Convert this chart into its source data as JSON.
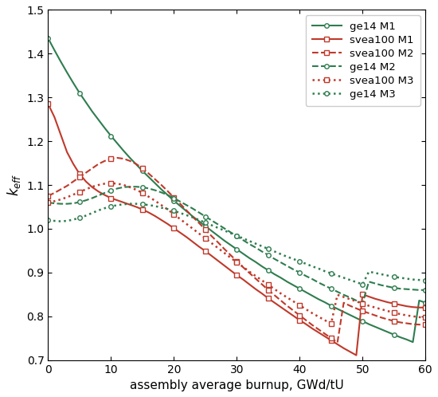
{
  "xlabel": "assembly average burnup, GWd/tU",
  "xlim": [
    0,
    60
  ],
  "ylim": [
    0.7,
    1.5
  ],
  "xticks": [
    0,
    10,
    20,
    30,
    40,
    50,
    60
  ],
  "yticks": [
    0.7,
    0.8,
    0.9,
    1.0,
    1.1,
    1.2,
    1.3,
    1.4,
    1.5
  ],
  "ge14_M1_x": [
    0,
    1,
    2,
    3,
    4,
    5,
    6,
    7,
    8,
    9,
    10,
    11,
    12,
    13,
    14,
    15,
    16,
    17,
    18,
    19,
    20,
    21,
    22,
    23,
    24,
    25,
    26,
    27,
    28,
    29,
    30,
    31,
    32,
    33,
    34,
    35,
    36,
    37,
    38,
    39,
    40,
    41,
    42,
    43,
    44,
    45,
    46,
    47,
    48,
    49,
    50,
    51,
    52,
    53,
    54,
    55,
    56,
    57,
    58,
    59,
    60
  ],
  "ge14_M1_y": [
    1.435,
    1.408,
    1.382,
    1.357,
    1.333,
    1.31,
    1.289,
    1.268,
    1.249,
    1.23,
    1.212,
    1.195,
    1.178,
    1.162,
    1.147,
    1.132,
    1.118,
    1.104,
    1.09,
    1.077,
    1.064,
    1.052,
    1.04,
    1.028,
    1.017,
    1.006,
    0.995,
    0.984,
    0.973,
    0.963,
    0.953,
    0.943,
    0.933,
    0.924,
    0.914,
    0.905,
    0.896,
    0.888,
    0.879,
    0.871,
    0.863,
    0.855,
    0.847,
    0.839,
    0.832,
    0.824,
    0.817,
    0.81,
    0.803,
    0.796,
    0.789,
    0.782,
    0.776,
    0.77,
    0.764,
    0.758,
    0.752,
    0.747,
    0.741,
    0.836,
    0.831
  ],
  "svea100_M1_x": [
    0,
    1,
    2,
    3,
    4,
    5,
    6,
    7,
    8,
    9,
    10,
    11,
    12,
    13,
    14,
    15,
    16,
    17,
    18,
    19,
    20,
    21,
    22,
    23,
    24,
    25,
    26,
    27,
    28,
    29,
    30,
    31,
    32,
    33,
    34,
    35,
    36,
    37,
    38,
    39,
    40,
    41,
    42,
    43,
    44,
    45,
    46,
    47,
    48,
    49,
    50,
    51,
    52,
    53,
    54,
    55,
    56,
    57,
    58,
    59,
    60
  ],
  "svea100_M1_y": [
    1.285,
    1.255,
    1.215,
    1.175,
    1.148,
    1.125,
    1.108,
    1.095,
    1.085,
    1.077,
    1.07,
    1.065,
    1.06,
    1.055,
    1.05,
    1.044,
    1.037,
    1.029,
    1.02,
    1.011,
    1.001,
    0.991,
    0.981,
    0.97,
    0.959,
    0.949,
    0.938,
    0.927,
    0.916,
    0.905,
    0.894,
    0.884,
    0.873,
    0.862,
    0.852,
    0.841,
    0.831,
    0.821,
    0.811,
    0.801,
    0.791,
    0.782,
    0.772,
    0.763,
    0.754,
    0.745,
    0.736,
    0.727,
    0.719,
    0.711,
    0.85,
    0.845,
    0.84,
    0.836,
    0.832,
    0.829,
    0.826,
    0.823,
    0.821,
    0.82,
    0.82
  ],
  "svea100_M2_x": [
    0,
    1,
    2,
    3,
    4,
    5,
    6,
    7,
    8,
    9,
    10,
    11,
    12,
    13,
    14,
    15,
    16,
    17,
    18,
    19,
    20,
    21,
    22,
    23,
    24,
    25,
    26,
    27,
    28,
    29,
    30,
    31,
    32,
    33,
    34,
    35,
    36,
    37,
    38,
    39,
    40,
    41,
    42,
    43,
    44,
    45,
    46,
    47,
    48,
    49,
    50,
    51,
    52,
    53,
    54,
    55,
    56,
    57,
    58,
    59,
    60
  ],
  "svea100_M2_y": [
    1.075,
    1.082,
    1.09,
    1.098,
    1.108,
    1.118,
    1.128,
    1.138,
    1.148,
    1.155,
    1.16,
    1.162,
    1.16,
    1.155,
    1.148,
    1.138,
    1.126,
    1.113,
    1.1,
    1.086,
    1.071,
    1.057,
    1.042,
    1.027,
    1.013,
    0.998,
    0.983,
    0.969,
    0.954,
    0.94,
    0.926,
    0.912,
    0.899,
    0.886,
    0.873,
    0.86,
    0.848,
    0.836,
    0.824,
    0.813,
    0.802,
    0.791,
    0.78,
    0.77,
    0.76,
    0.75,
    0.74,
    0.831,
    0.824,
    0.818,
    0.812,
    0.807,
    0.802,
    0.797,
    0.793,
    0.789,
    0.786,
    0.784,
    0.782,
    0.781,
    0.781
  ],
  "ge14_M2_x": [
    0,
    1,
    2,
    3,
    4,
    5,
    6,
    7,
    8,
    9,
    10,
    11,
    12,
    13,
    14,
    15,
    16,
    17,
    18,
    19,
    20,
    21,
    22,
    23,
    24,
    25,
    26,
    27,
    28,
    29,
    30,
    31,
    32,
    33,
    34,
    35,
    36,
    37,
    38,
    39,
    40,
    41,
    42,
    43,
    44,
    45,
    46,
    47,
    48,
    49,
    50,
    51,
    52,
    53,
    54,
    55,
    56,
    57,
    58,
    59,
    60
  ],
  "ge14_M2_y": [
    1.06,
    1.058,
    1.057,
    1.057,
    1.058,
    1.061,
    1.065,
    1.07,
    1.076,
    1.082,
    1.087,
    1.092,
    1.095,
    1.096,
    1.096,
    1.095,
    1.092,
    1.088,
    1.083,
    1.077,
    1.07,
    1.062,
    1.054,
    1.046,
    1.037,
    1.028,
    1.019,
    1.01,
    1.001,
    0.992,
    0.983,
    0.974,
    0.965,
    0.957,
    0.948,
    0.94,
    0.931,
    0.923,
    0.915,
    0.907,
    0.9,
    0.892,
    0.885,
    0.877,
    0.87,
    0.863,
    0.856,
    0.849,
    0.843,
    0.836,
    0.83,
    0.879,
    0.875,
    0.871,
    0.868,
    0.865,
    0.863,
    0.862,
    0.861,
    0.86,
    0.86
  ],
  "svea100_M3_x": [
    0,
    1,
    2,
    3,
    4,
    5,
    6,
    7,
    8,
    9,
    10,
    11,
    12,
    13,
    14,
    15,
    16,
    17,
    18,
    19,
    20,
    21,
    22,
    23,
    24,
    25,
    26,
    27,
    28,
    29,
    30,
    31,
    32,
    33,
    34,
    35,
    36,
    37,
    38,
    39,
    40,
    41,
    42,
    43,
    44,
    45,
    46,
    47,
    48,
    49,
    50,
    51,
    52,
    53,
    54,
    55,
    56,
    57,
    58,
    59,
    60
  ],
  "svea100_M3_y": [
    1.06,
    1.063,
    1.067,
    1.072,
    1.078,
    1.084,
    1.09,
    1.096,
    1.1,
    1.103,
    1.104,
    1.103,
    1.1,
    1.095,
    1.089,
    1.082,
    1.073,
    1.064,
    1.054,
    1.044,
    1.033,
    1.022,
    1.011,
    1.0,
    0.989,
    0.978,
    0.967,
    0.956,
    0.945,
    0.934,
    0.923,
    0.913,
    0.902,
    0.892,
    0.882,
    0.872,
    0.862,
    0.852,
    0.843,
    0.834,
    0.825,
    0.816,
    0.807,
    0.799,
    0.791,
    0.783,
    0.849,
    0.844,
    0.839,
    0.834,
    0.829,
    0.824,
    0.82,
    0.816,
    0.812,
    0.808,
    0.805,
    0.802,
    0.8,
    0.798,
    0.797
  ],
  "ge14_M3_x": [
    0,
    1,
    2,
    3,
    4,
    5,
    6,
    7,
    8,
    9,
    10,
    11,
    12,
    13,
    14,
    15,
    16,
    17,
    18,
    19,
    20,
    21,
    22,
    23,
    24,
    25,
    26,
    27,
    28,
    29,
    30,
    31,
    32,
    33,
    34,
    35,
    36,
    37,
    38,
    39,
    40,
    41,
    42,
    43,
    44,
    45,
    46,
    47,
    48,
    49,
    50,
    51,
    52,
    53,
    54,
    55,
    56,
    57,
    58,
    59,
    60
  ],
  "ge14_M3_y": [
    1.02,
    1.018,
    1.017,
    1.018,
    1.021,
    1.025,
    1.03,
    1.036,
    1.042,
    1.047,
    1.051,
    1.054,
    1.056,
    1.057,
    1.057,
    1.056,
    1.054,
    1.052,
    1.048,
    1.045,
    1.041,
    1.036,
    1.031,
    1.026,
    1.02,
    1.014,
    1.008,
    1.002,
    0.996,
    0.99,
    0.984,
    0.978,
    0.972,
    0.966,
    0.96,
    0.954,
    0.948,
    0.942,
    0.936,
    0.931,
    0.925,
    0.92,
    0.914,
    0.909,
    0.903,
    0.898,
    0.893,
    0.888,
    0.883,
    0.878,
    0.873,
    0.902,
    0.899,
    0.896,
    0.893,
    0.89,
    0.888,
    0.886,
    0.884,
    0.883,
    0.882
  ],
  "color_green": "#2e7d4f",
  "color_red": "#c0392b",
  "color_dark_green": "#1a5c3a"
}
